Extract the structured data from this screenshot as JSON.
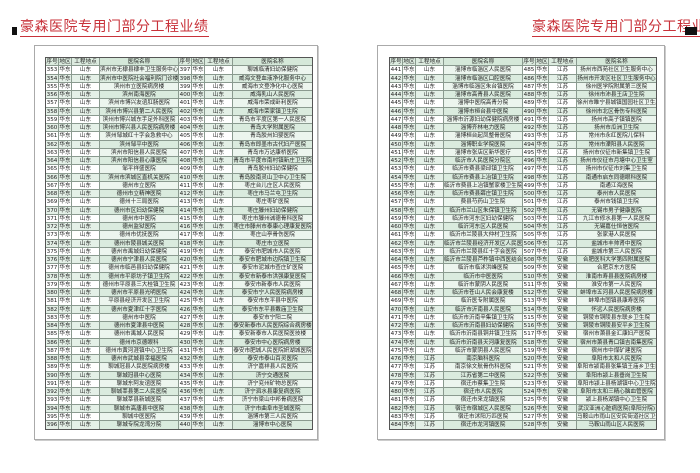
{
  "title": "豪森医院专用门部分工程业绩",
  "colors": {
    "title": "#c8323a",
    "row_shade": "#e4f0e7"
  },
  "headers": [
    "序号",
    "地区",
    "工程地点",
    "医院名称"
  ],
  "pages": [
    {
      "blocks": [
        [
          [
            "353",
            "华东",
            "山东",
            "滨州市无棣县棣丰卫生服务中心"
          ],
          [
            "354",
            "华东",
            "山东",
            "滨州市中医院社会福利院门诊楼"
          ],
          [
            "355",
            "华东",
            "山东",
            "滨州市立医院病房楼"
          ],
          [
            "356",
            "华东",
            "山东",
            "滨州南海医院"
          ],
          [
            "357",
            "华东",
            "山东",
            "滨州市博兴友谊肛肠医院"
          ],
          [
            "358",
            "华东",
            "山东",
            "滨州市博兴县第二人民医院"
          ],
          [
            "359",
            "华东",
            "山东",
            "滨州市博兴城东手足外科医院"
          ],
          [
            "360",
            "华东",
            "山东",
            "滨州市博兴县人民医院病房楼"
          ],
          [
            "361",
            "华东",
            "山东",
            "滨州邹城红十字会急救中心"
          ],
          [
            "362",
            "华东",
            "山东",
            "滨州邹平中医院"
          ],
          [
            "363",
            "华东",
            "山东",
            "滨州市阳信县人民医院"
          ],
          [
            "364",
            "华东",
            "山东",
            "滨州市阳信县心康医院"
          ],
          [
            "365",
            "华东",
            "山东",
            "邹平祥盛医院"
          ],
          [
            "366",
            "华东",
            "山东",
            "滨州市滨城区直机关医院"
          ],
          [
            "367",
            "华东",
            "山东",
            "德州市立医院"
          ],
          [
            "368",
            "华东",
            "山东",
            "德州市立精神医院"
          ],
          [
            "369",
            "华东",
            "山东",
            "德州十三局医院"
          ],
          [
            "370",
            "华东",
            "山东",
            "德州市区妇幼保健院"
          ],
          [
            "371",
            "华东",
            "山东",
            "德州市中医院"
          ],
          [
            "372",
            "华东",
            "山东",
            "德州监狱医院"
          ],
          [
            "373",
            "华东",
            "山东",
            "德州市优抚医院"
          ],
          [
            "374",
            "华东",
            "山东",
            "德州市陵县城关医院"
          ],
          [
            "375",
            "华东",
            "山东",
            "德州市禹城妇幼保健院"
          ],
          [
            "376",
            "华东",
            "山东",
            "德州市宁津县人民医院"
          ],
          [
            "377",
            "华东",
            "山东",
            "德州市临邑县妇幼保健院"
          ],
          [
            "378",
            "华东",
            "山东",
            "德州市平原坊子镇卫生院"
          ],
          [
            "379",
            "华东",
            "山东",
            "德州市平原县三大桂镇卫生院"
          ],
          [
            "380",
            "华东",
            "山东",
            "德州市平原县光明医院"
          ],
          [
            "381",
            "华东",
            "山东",
            "平原县经济开发区卫生院"
          ],
          [
            "382",
            "华东",
            "山东",
            "德州市夏津红十字医院"
          ],
          [
            "383",
            "华东",
            "山东",
            "德州市中医院"
          ],
          [
            "384",
            "华东",
            "山东",
            "德州市夏津县中医院"
          ],
          [
            "385",
            "华东",
            "山东",
            "德州市禹城人民医院"
          ],
          [
            "386",
            "华东",
            "山东",
            "德州市京德眼科"
          ],
          [
            "387",
            "华东",
            "山东",
            "德州市黄河涯镇中心卫生院"
          ],
          [
            "388",
            "华东",
            "山东",
            "德州市武城县幸福医院"
          ],
          [
            "389",
            "华东",
            "山东",
            "聊城冠县人民医院病房楼"
          ],
          [
            "390",
            "华东",
            "山东",
            "聊城冠县中心医院"
          ],
          [
            "391",
            "华东",
            "山东",
            "聊城东阿友谊医院"
          ],
          [
            "392",
            "华东",
            "山东",
            "聊城莘县第二人民医院"
          ],
          [
            "393",
            "华东",
            "山东",
            "聊城莘县新城医院"
          ],
          [
            "394",
            "华东",
            "山东",
            "聊城市高唐县中医院"
          ],
          [
            "395",
            "华东",
            "山东",
            "聊城中医医院"
          ],
          [
            "396",
            "华东",
            "山东",
            "聊城专院龙湾分院"
          ]
        ],
        [
          [
            "397",
            "华东",
            "山东",
            "聊城临清妇幼保健院"
          ],
          [
            "398",
            "华东",
            "山东",
            "威海文登血液净化服务中心"
          ],
          [
            "399",
            "华东",
            "山东",
            "威海市文登净化中心医院"
          ],
          [
            "400",
            "华东",
            "山东",
            "威海乳山人民医院"
          ],
          [
            "401",
            "华东",
            "山东",
            "威海市荣成卧利医院"
          ],
          [
            "402",
            "华东",
            "山东",
            "威海市荣家镇卫生院"
          ],
          [
            "403",
            "华东",
            "山东",
            "青岛市平度区第一人民医院"
          ],
          [
            "404",
            "华东",
            "山东",
            "青岛大学附属医院"
          ],
          [
            "405",
            "华东",
            "山东",
            "青岛胶州妇婴医院"
          ],
          [
            "406",
            "华东",
            "山东",
            "青岛市即墨市古代妇产医院"
          ],
          [
            "407",
            "华东",
            "山东",
            "青岛市万达康桥医院"
          ],
          [
            "408",
            "华东",
            "山东",
            "青岛市平度市南村镇新庄卫生院"
          ],
          [
            "409",
            "华东",
            "山东",
            "青岛胶州妇幼保健院"
          ],
          [
            "410",
            "华东",
            "山东",
            "青岛胶南灵山卫中心卫生院"
          ],
          [
            "411",
            "华东",
            "山东",
            "枣庄台儿庄区人民医院"
          ],
          [
            "412",
            "华东",
            "山东",
            "枣庄市马兰屯卫生院"
          ],
          [
            "413",
            "华东",
            "山东",
            "枣庄枣矿医院"
          ],
          [
            "414",
            "华东",
            "山东",
            "枣庄滕州妇幼保健院"
          ],
          [
            "415",
            "华东",
            "山东",
            "枣庄市滕州诚德骨科医院"
          ],
          [
            "416",
            "华东",
            "山东",
            "枣庄市滕州市泰康心理康复医院"
          ],
          [
            "417",
            "华东",
            "山东",
            "枣庄山亭骨伤医院"
          ],
          [
            "418",
            "华东",
            "山东",
            "枣庄市立医院"
          ],
          [
            "419",
            "华东",
            "山东",
            "泰安市肥城市人民医院"
          ],
          [
            "420",
            "华东",
            "山东",
            "泰安市肥城市边院镇卫生院"
          ],
          [
            "421",
            "华东",
            "山东",
            "泰安市泥城市查庄矿医院"
          ],
          [
            "422",
            "华东",
            "山东",
            "泰安市新泰市洪强康复医院"
          ],
          [
            "423",
            "华东",
            "山东",
            "泰安市新泰市人民医院"
          ],
          [
            "424",
            "华东",
            "山东",
            "泰安市宁人民医院病房楼"
          ],
          [
            "425",
            "华东",
            "山东",
            "泰安市东平县中医院"
          ],
          [
            "426",
            "华东",
            "山东",
            "泰安市东平县戴庙卫生院"
          ],
          [
            "427",
            "华东",
            "山东",
            "泰安市宁阳二院"
          ],
          [
            "428",
            "华东",
            "山东",
            "泰安新泰市人民医院综合病房楼"
          ],
          [
            "429",
            "华东",
            "山东",
            "泰安新泰市人民医院医技楼"
          ],
          [
            "430",
            "华东",
            "山东",
            "泰安市中心医院病房楼"
          ],
          [
            "431",
            "华东",
            "山东",
            "泰安市肥城人民医院妍湖城医院"
          ],
          [
            "432",
            "华东",
            "山东",
            "泰安市泰山百灵医院"
          ],
          [
            "433",
            "华东",
            "山东",
            "济宁嘉祥县人民医院"
          ],
          [
            "434",
            "华东",
            "山东",
            "济宁交通医院"
          ],
          [
            "435",
            "华东",
            "山东",
            "济宁兖州矿物总医院"
          ],
          [
            "436",
            "华东",
            "山东",
            "济宁泗水县康复病医院"
          ],
          [
            "437",
            "华东",
            "山东",
            "济宁市梁山中邦骨病医院"
          ],
          [
            "438",
            "华东",
            "山东",
            "济宁市曲阜市圣城医院"
          ],
          [
            "439",
            "华东",
            "山东",
            "淄博市第三人民医院"
          ],
          [
            "440",
            "华东",
            "山东",
            "淄博市中心医院"
          ]
        ]
      ]
    },
    {
      "blocks": [
        [
          [
            "441",
            "华东",
            "山东",
            "淄博市临淄区人民医院"
          ],
          [
            "442",
            "华东",
            "山东",
            "淄博市临淄区口腔医院"
          ],
          [
            "443",
            "华东",
            "山东",
            "淄博市临淄区朱台镇医院"
          ],
          [
            "444",
            "华东",
            "山东",
            "淄博市高青县人民医院"
          ],
          [
            "445",
            "华东",
            "山东",
            "淄博中医院高青分院"
          ],
          [
            "446",
            "华东",
            "山东",
            "淄博市桓台县中医院"
          ],
          [
            "447",
            "华东",
            "山东",
            "淄博市沂源妇幼保健院病房楼"
          ],
          [
            "448",
            "华东",
            "山东",
            "淄博齐林电力医院"
          ],
          [
            "449",
            "华东",
            "山东",
            "淄博桓台起凤整骨医院"
          ],
          [
            "450",
            "华东",
            "山东",
            "淄博职业学院医院"
          ],
          [
            "451",
            "华东",
            "山东",
            "淄博市张店区新华医疗"
          ],
          [
            "452",
            "华东",
            "山东",
            "临沂市人民医院分院区"
          ],
          [
            "453",
            "华东",
            "山东",
            "临沂市费县梁邱镇卫生院"
          ],
          [
            "454",
            "华东",
            "山东",
            "临沂市费县上冶镇卫生院"
          ],
          [
            "455",
            "华东",
            "山东",
            "临沂市费县上冶镇蟹家楼卫生院"
          ],
          [
            "456",
            "华东",
            "山东",
            "临沂市费县薛庄镇卫生院"
          ],
          [
            "457",
            "华东",
            "山东",
            "费县芍药山卫生院"
          ],
          [
            "458",
            "华东",
            "山东",
            "临沂市兰山区朱保镇卫生院"
          ],
          [
            "459",
            "华东",
            "山东",
            "临沂市河东区妇幼保健院"
          ],
          [
            "460",
            "华东",
            "山东",
            "临沂河东区人民医院"
          ],
          [
            "461",
            "华东",
            "山东",
            "临沂市兰陵县大仲村卫生院"
          ],
          [
            "462",
            "华东",
            "山东",
            "临沂市兰陵县经济开发区人民医院"
          ],
          [
            "463",
            "华东",
            "山东",
            "临沂市兰陵县红十字会医院"
          ],
          [
            "464",
            "华东",
            "山东",
            "临沂市兰陵县芦柞镇中西医结合医院"
          ],
          [
            "465",
            "华东",
            "山东",
            "临沂市临沭洪峰医院"
          ],
          [
            "466",
            "华东",
            "山东",
            "临沂市中医医院"
          ],
          [
            "467",
            "华东",
            "山东",
            "临沂市蒙阴人民医院"
          ],
          [
            "468",
            "华东",
            "山东",
            "临沂市苍山人民会康复楼"
          ],
          [
            "469",
            "华东",
            "山东",
            "临沂医专附属医院"
          ],
          [
            "470",
            "华东",
            "山东",
            "临沂市沂南县人民医院"
          ],
          [
            "471",
            "华东",
            "山东",
            "临沂市沂南辛集镇卫生院"
          ],
          [
            "472",
            "华东",
            "山东",
            "临沂市沂南县妇幼保健院"
          ],
          [
            "473",
            "华东",
            "山东",
            "临沂市沂南县铜井镇卫生院"
          ],
          [
            "474",
            "华东",
            "山东",
            "临沂市沂南县天河康复医院"
          ],
          [
            "475",
            "华东",
            "山东",
            "临沂市蒙阴县人民医院"
          ],
          [
            "476",
            "华东",
            "江苏",
            "南京脑科医院"
          ],
          [
            "477",
            "华东",
            "江苏",
            "南京徐文航骨伤科医院"
          ],
          [
            "478",
            "华东",
            "江苏",
            "江苏省第二中医院"
          ],
          [
            "479",
            "华东",
            "江苏",
            "宿迁市蔡集卫生院"
          ],
          [
            "480",
            "华东",
            "江苏",
            "宿迁市人民医院"
          ],
          [
            "481",
            "华东",
            "江苏",
            "宿迁市来龙镇医院"
          ],
          [
            "482",
            "华东",
            "江苏",
            "宿迁市宿城区人民医院"
          ],
          [
            "483",
            "华东",
            "江苏",
            "宿迁市沭阳万匹医院"
          ],
          [
            "484",
            "华东",
            "江苏",
            "宿迁市龙河镇医院"
          ]
        ],
        [
          [
            "485",
            "华东",
            "江苏",
            "扬州市西苑社区卫生服务中心"
          ],
          [
            "486",
            "华东",
            "江苏",
            "扬州市开发区社区卫生服务中心"
          ],
          [
            "487",
            "华东",
            "江苏",
            "徐州医学院附属第三医院"
          ],
          [
            "488",
            "华东",
            "江苏",
            "徐州市沛县王店卫生院"
          ],
          [
            "489",
            "华东",
            "江苏",
            "徐州市睢宁县城镇国园社区卫生服务中心"
          ],
          [
            "490",
            "华东",
            "江苏",
            "徐州市北区骨伤专科医院"
          ],
          [
            "491",
            "华东",
            "江苏",
            "扬州市高子镇镇医院"
          ],
          [
            "492",
            "华东",
            "江苏",
            "扬州市瓜洲卫生院"
          ],
          [
            "493",
            "华东",
            "江苏",
            "常州市永红医院儿保科"
          ],
          [
            "494",
            "华东",
            "江苏",
            "常州市溧阳县人民医院"
          ],
          [
            "495",
            "华东",
            "江苏",
            "扬州市仪征市新集镇卫生院"
          ],
          [
            "496",
            "华东",
            "江苏",
            "扬州市仪征市月塘中心卫生室"
          ],
          [
            "497",
            "华东",
            "江苏",
            "扬州市仪征市刘集卫生院"
          ],
          [
            "498",
            "华东",
            "江苏",
            "南通市启东同德眼科医院"
          ],
          [
            "499",
            "华东",
            "江苏",
            "南通江海医院"
          ],
          [
            "500",
            "华东",
            "江苏",
            "泰州市人民医院"
          ],
          [
            "501",
            "华东",
            "江苏",
            "泰州市钱镇卫生院"
          ],
          [
            "502",
            "华东",
            "江苏",
            "无锡市男子健康医院"
          ],
          [
            "503",
            "华东",
            "江苏",
            "九江市修水县第一人民医院"
          ],
          [
            "504",
            "华东",
            "江苏",
            "无锡嘉仕恒信医院"
          ],
          [
            "505",
            "华东",
            "江苏",
            "张家港人民医院"
          ],
          [
            "506",
            "华东",
            "江苏",
            "盐城市丰帅肾中医院"
          ],
          [
            "507",
            "华东",
            "江苏",
            "盐城市第三人民医院"
          ],
          [
            "508",
            "华东",
            "安徽",
            "合肥医科大学第四附属医院"
          ],
          [
            "509",
            "华东",
            "安徽",
            "合肥京东方医院"
          ],
          [
            "510",
            "华东",
            "安徽",
            "淮南市寿县县医院病房楼"
          ],
          [
            "511",
            "华东",
            "安徽",
            "淮安市第一人民医院"
          ],
          [
            "512",
            "华东",
            "安徽",
            "蚌埠市五河县人民医院病房楼"
          ],
          [
            "513",
            "华东",
            "安徽",
            "蚌埠市固镇县康寿医院"
          ],
          [
            "514",
            "华东",
            "安徽",
            "怀远人民医院病房楼"
          ],
          [
            "515",
            "华东",
            "安徽",
            "铜陵市铜陵县东联乡卫生院"
          ],
          [
            "516",
            "华东",
            "安徽",
            "铜陵市铜陵县安平乡卫生院"
          ],
          [
            "517",
            "华东",
            "安徽",
            "宿州市萧县金汇康妇产医院"
          ],
          [
            "518",
            "华东",
            "安徽",
            "宿州市萧县青口镇吉南集医院"
          ],
          [
            "519",
            "华东",
            "安徽",
            "宿州市中煤矿建医院"
          ],
          [
            "520",
            "华东",
            "安徽",
            "阜阳市太和人民医院"
          ],
          [
            "521",
            "华东",
            "安徽",
            "阜阳市颍南县张集镇王庙乡卫生院"
          ],
          [
            "522",
            "华东",
            "安徽",
            "阜阳市颍上县垂岗卫生院"
          ],
          [
            "523",
            "华东",
            "安徽",
            "阜阳市颍上县杨湖镇中心卫生院"
          ],
          [
            "524",
            "华东",
            "安徽",
            "阜阳市太和三精心脑血管医院"
          ],
          [
            "525",
            "华东",
            "安徽",
            "颍上县杨湖镇中心卫生院"
          ],
          [
            "526",
            "华东",
            "安徽",
            "武汉亚洲心脏病医院(阜阳分院)"
          ],
          [
            "527",
            "华东",
            "安徽",
            "马鞍山市雨山区安民街道社区卫生中心"
          ],
          [
            "528",
            "华东",
            "安徽",
            "马鞍山雨山区人民医院"
          ]
        ]
      ]
    }
  ]
}
